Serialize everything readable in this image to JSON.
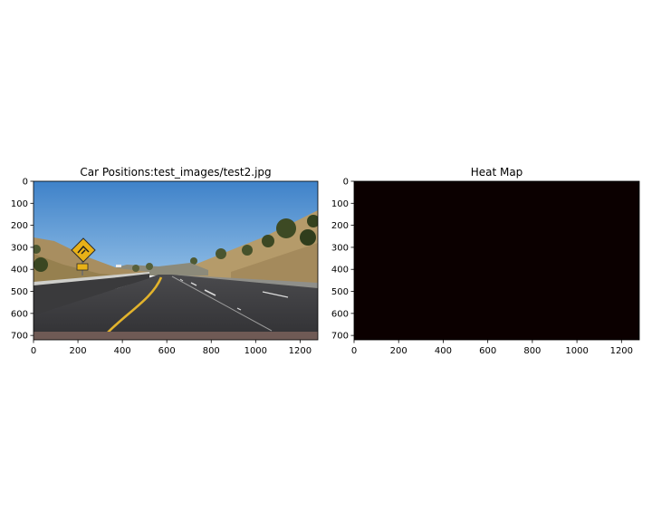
{
  "figure": {
    "background": "#ffffff"
  },
  "chart_data": [
    {
      "type": "image",
      "title": "Car Positions:test_images/test2.jpg",
      "image_size": [
        1280,
        720
      ],
      "xlim": [
        0,
        1280
      ],
      "ylim": [
        720,
        0
      ],
      "x_ticks": [
        0,
        200,
        400,
        600,
        800,
        1000,
        1200
      ],
      "y_ticks": [
        0,
        100,
        200,
        300,
        400,
        500,
        600,
        700
      ],
      "content": "road photo: highway curving left under blue sky, deer-crossing sign on left, dry hills with trees"
    },
    {
      "type": "heatmap",
      "title": "Heat Map",
      "image_size": [
        1280,
        720
      ],
      "xlim": [
        0,
        1280
      ],
      "ylim": [
        720,
        0
      ],
      "x_ticks": [
        0,
        200,
        400,
        600,
        800,
        1000,
        1200
      ],
      "y_ticks": [
        0,
        100,
        200,
        300,
        400,
        500,
        600,
        700
      ],
      "colormap": "hot",
      "values": "all zero",
      "fill_color": "#0b0000"
    }
  ]
}
